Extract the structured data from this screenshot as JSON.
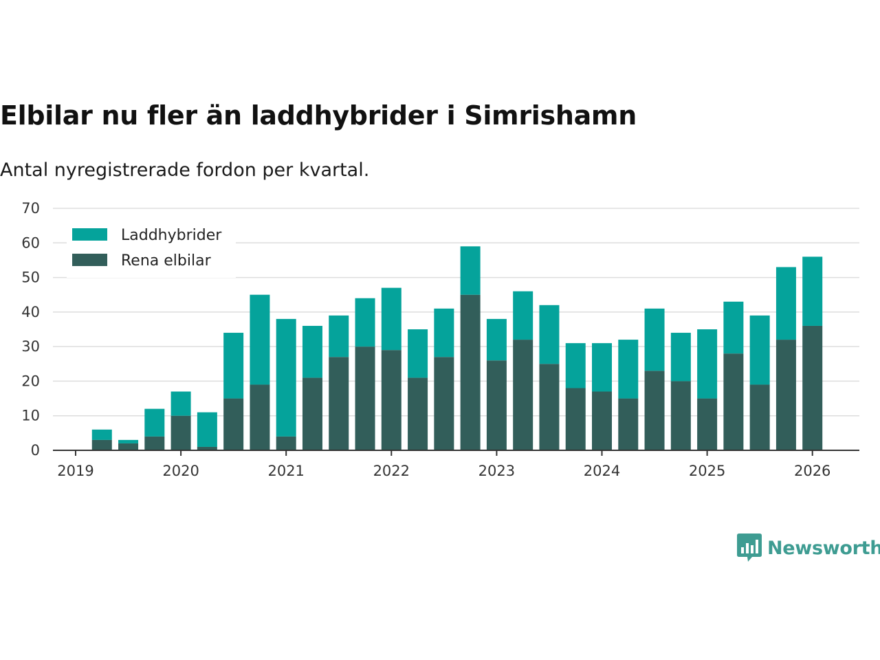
{
  "title": "Elbilar nu fler än laddhybrider i Simrishamn",
  "subtitle": "Antal nyregistrerade fordon per kvartal.",
  "colors": {
    "laddhybrider": "#05a39b",
    "rena_elbilar": "#325e5a",
    "grid": "#dddddd",
    "axis": "#333333",
    "logo": "#3e9c92"
  },
  "logo": {
    "text": "Newsworthy",
    "icon": "bar-chart-speech-bubble-icon"
  },
  "chart_data": {
    "type": "bar",
    "stacked": true,
    "title": "Elbilar nu fler än laddhybrider i Simrishamn",
    "subtitle": "Antal nyregistrerade fordon per kvartal.",
    "xlabel": "",
    "ylabel": "",
    "ylim": [
      0,
      70
    ],
    "yticks": [
      0,
      10,
      20,
      30,
      40,
      50,
      60,
      70
    ],
    "xlim": [
      2019,
      2026.45
    ],
    "xticks": [
      "2019",
      "2020",
      "2021",
      "2022",
      "2023",
      "2024",
      "2025",
      "2026"
    ],
    "legend_position": "top-left",
    "grid": true,
    "categories": [
      "2019 Q1",
      "2019 Q2",
      "2019 Q3",
      "2019 Q4",
      "2020 Q1",
      "2020 Q2",
      "2020 Q3",
      "2020 Q4",
      "2021 Q1",
      "2021 Q2",
      "2021 Q3",
      "2021 Q4",
      "2022 Q1",
      "2022 Q2",
      "2022 Q3",
      "2022 Q4",
      "2023 Q1",
      "2023 Q2",
      "2023 Q3",
      "2023 Q4",
      "2024 Q1",
      "2024 Q2",
      "2024 Q3",
      "2024 Q4",
      "2025 Q1",
      "2025 Q2",
      "2025 Q3",
      "2025 Q4",
      "2026 Q1"
    ],
    "x": [
      2019.25,
      2019.5,
      2019.75,
      2020.0,
      2020.25,
      2020.5,
      2020.75,
      2021.0,
      2021.25,
      2021.5,
      2021.75,
      2022.0,
      2022.25,
      2022.5,
      2022.75,
      2023.0,
      2023.25,
      2023.5,
      2023.75,
      2024.0,
      2024.25,
      2024.5,
      2024.75,
      2025.0,
      2025.25,
      2025.5,
      2025.75,
      2026.0,
      2026.25
    ],
    "series": [
      {
        "name": "Rena elbilar",
        "key": "rena_elbilar",
        "values": [
          3,
          2,
          4,
          10,
          1,
          15,
          19,
          4,
          21,
          27,
          30,
          29,
          21,
          27,
          45,
          26,
          32,
          25,
          18,
          17,
          15,
          23,
          20,
          15,
          28,
          19,
          32,
          36,
          0
        ]
      },
      {
        "name": "Laddhybrider",
        "key": "laddhybrider",
        "values": [
          3,
          1,
          8,
          7,
          10,
          19,
          26,
          34,
          15,
          12,
          14,
          18,
          14,
          14,
          14,
          12,
          14,
          17,
          13,
          14,
          17,
          18,
          14,
          20,
          15,
          20,
          21,
          20,
          0
        ]
      }
    ],
    "legend": [
      "Laddhybrider",
      "Rena elbilar"
    ]
  }
}
